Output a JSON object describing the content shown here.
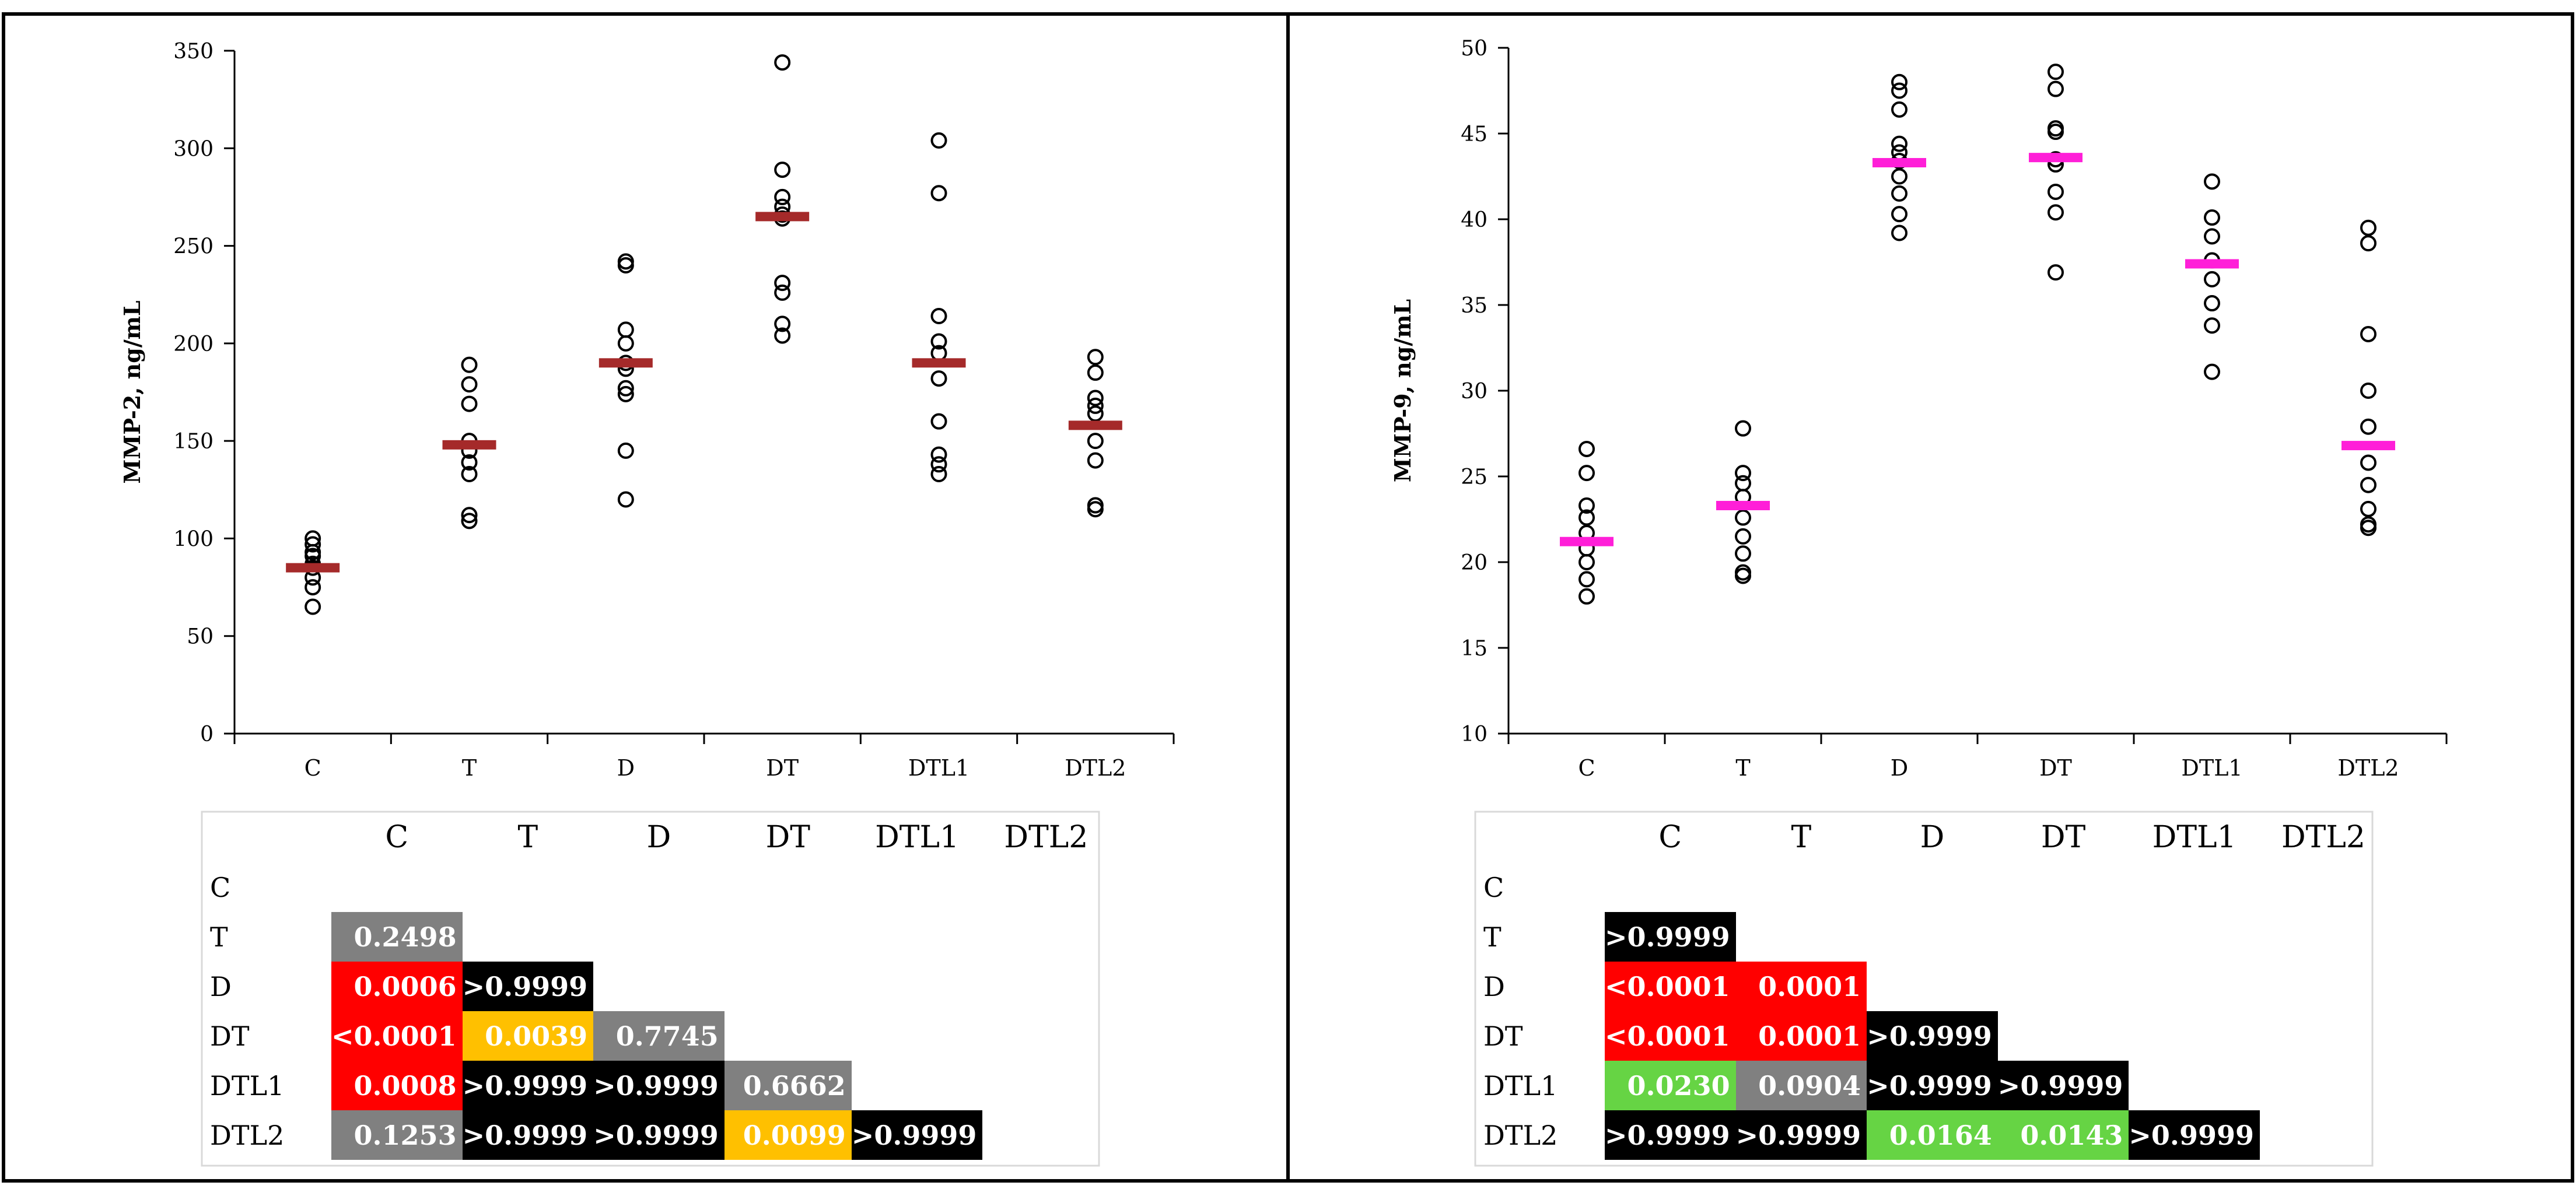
{
  "chart_data": [
    {
      "type": "scatter",
      "ylabel": "MMP-2, ng/mL",
      "ylim": [
        0,
        350
      ],
      "yticks": [
        0,
        50,
        100,
        150,
        200,
        250,
        300,
        350
      ],
      "categories": [
        "C",
        "T",
        "D",
        "DT",
        "DTL1",
        "DTL2"
      ],
      "mean_color": "#a52a2a",
      "means": [
        85,
        148,
        190,
        265,
        190,
        158
      ],
      "points": [
        [
          100,
          97,
          93,
          91,
          87,
          85,
          80,
          75,
          65
        ],
        [
          189,
          179,
          169,
          150,
          145,
          139,
          133,
          112,
          109
        ],
        [
          242,
          240,
          207,
          200,
          190,
          187,
          177,
          174,
          145,
          120
        ],
        [
          344,
          289,
          275,
          270,
          266,
          264,
          231,
          226,
          210,
          204
        ],
        [
          304,
          277,
          214,
          201,
          195,
          182,
          160,
          143,
          138,
          133
        ],
        [
          193,
          185,
          172,
          168,
          164,
          150,
          140,
          117,
          115
        ]
      ],
      "pvalues": {
        "columns": [
          "C",
          "T",
          "D",
          "DT",
          "DTL1",
          "DTL2"
        ],
        "rows": [
          {
            "label": "C",
            "cells": []
          },
          {
            "label": "T",
            "cells": [
              {
                "value": "0.2498",
                "color": "#808080"
              }
            ]
          },
          {
            "label": "D",
            "cells": [
              {
                "value": "0.0006",
                "color": "#ff0000"
              },
              {
                "value": ">0.9999",
                "color": "#000000"
              }
            ]
          },
          {
            "label": "DT",
            "cells": [
              {
                "value": "<0.0001",
                "color": "#ff0000"
              },
              {
                "value": "0.0039",
                "color": "#ffc000"
              },
              {
                "value": "0.7745",
                "color": "#808080"
              }
            ]
          },
          {
            "label": "DTL1",
            "cells": [
              {
                "value": "0.0008",
                "color": "#ff0000"
              },
              {
                "value": ">0.9999",
                "color": "#000000"
              },
              {
                "value": ">0.9999",
                "color": "#000000"
              },
              {
                "value": "0.6662",
                "color": "#808080"
              }
            ]
          },
          {
            "label": "DTL2",
            "cells": [
              {
                "value": "0.1253",
                "color": "#808080"
              },
              {
                "value": ">0.9999",
                "color": "#000000"
              },
              {
                "value": ">0.9999",
                "color": "#000000"
              },
              {
                "value": "0.0099",
                "color": "#ffc000"
              },
              {
                "value": ">0.9999",
                "color": "#000000"
              }
            ]
          }
        ]
      }
    },
    {
      "type": "scatter",
      "ylabel": "MMP-9, ng/mL",
      "ylim": [
        10,
        50
      ],
      "yticks": [
        10,
        15,
        20,
        25,
        30,
        35,
        40,
        45,
        50
      ],
      "categories": [
        "C",
        "T",
        "D",
        "DT",
        "DTL1",
        "DTL2"
      ],
      "mean_color": "#ff1fd8",
      "means": [
        21.2,
        23.3,
        43.3,
        43.6,
        37.4,
        26.8
      ],
      "points": [
        [
          26.6,
          25.2,
          23.3,
          22.6,
          21.7,
          20.8,
          20.0,
          19.0,
          18.0
        ],
        [
          27.8,
          25.2,
          24.6,
          23.8,
          22.6,
          21.5,
          20.5,
          19.4,
          19.2
        ],
        [
          48.0,
          47.5,
          46.4,
          44.4,
          43.9,
          43.4,
          42.5,
          41.5,
          40.3,
          39.2
        ],
        [
          48.6,
          47.6,
          45.3,
          45.1,
          43.5,
          43.2,
          41.6,
          40.4,
          36.9
        ],
        [
          42.2,
          40.1,
          39.0,
          37.6,
          36.5,
          35.1,
          33.8,
          31.1
        ],
        [
          39.5,
          38.6,
          33.3,
          30.0,
          27.9,
          25.8,
          24.5,
          23.1,
          22.2,
          22.0
        ]
      ],
      "pvalues": {
        "columns": [
          "C",
          "T",
          "D",
          "DT",
          "DTL1",
          "DTL2"
        ],
        "rows": [
          {
            "label": "C",
            "cells": []
          },
          {
            "label": "T",
            "cells": [
              {
                "value": ">0.9999",
                "color": "#000000"
              }
            ]
          },
          {
            "label": "D",
            "cells": [
              {
                "value": "<0.0001",
                "color": "#ff0000"
              },
              {
                "value": "0.0001",
                "color": "#ff0000"
              }
            ]
          },
          {
            "label": "DT",
            "cells": [
              {
                "value": "<0.0001",
                "color": "#ff0000"
              },
              {
                "value": "0.0001",
                "color": "#ff0000"
              },
              {
                "value": ">0.9999",
                "color": "#000000"
              }
            ]
          },
          {
            "label": "DTL1",
            "cells": [
              {
                "value": "0.0230",
                "color": "#66d444"
              },
              {
                "value": "0.0904",
                "color": "#808080"
              },
              {
                "value": ">0.9999",
                "color": "#000000"
              },
              {
                "value": ">0.9999",
                "color": "#000000"
              }
            ]
          },
          {
            "label": "DTL2",
            "cells": [
              {
                "value": ">0.9999",
                "color": "#000000"
              },
              {
                "value": ">0.9999",
                "color": "#000000"
              },
              {
                "value": "0.0164",
                "color": "#66d444"
              },
              {
                "value": "0.0143",
                "color": "#66d444"
              },
              {
                "value": ">0.9999",
                "color": "#000000"
              }
            ]
          }
        ]
      }
    }
  ]
}
